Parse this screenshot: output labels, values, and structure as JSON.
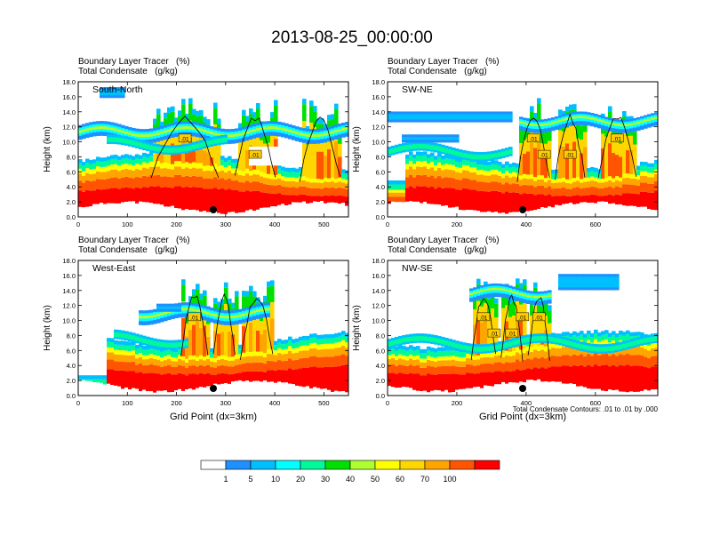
{
  "title": "2013-08-25_00:00:00",
  "panel_titles": {
    "line1": "Boundary Layer Tracer   (%)",
    "line2": "Total Condensate   (g/kg)"
  },
  "contour_note": "Total Condensate Contours: .01 to .01 by .000",
  "colorbar": {
    "labels": [
      "1",
      "5",
      "10",
      "20",
      "30",
      "40",
      "50",
      "60",
      "70",
      "100"
    ],
    "colors": [
      "#ffffff",
      "#1e90ff",
      "#00bfff",
      "#00ffff",
      "#00fa9a",
      "#00e000",
      "#adff2f",
      "#ffff00",
      "#ffd700",
      "#ffa500",
      "#ff5500",
      "#ff0000"
    ]
  },
  "chart_data": [
    {
      "type": "heatmap",
      "name": "South-North",
      "ylabel": "Height (km)",
      "xlabel": "",
      "xlim": [
        0,
        550
      ],
      "ylim": [
        0,
        18
      ],
      "xticks": [
        0,
        100,
        200,
        300,
        400,
        500
      ],
      "yticks": [
        "0.0",
        "2.0",
        "4.0",
        "6.0",
        "8.0",
        "10.0",
        "12.0",
        "14.0",
        "16.0",
        "18.0"
      ],
      "contour_labels": [
        ".01",
        ".01"
      ],
      "marker_x": 275
    },
    {
      "type": "heatmap",
      "name": "SW-NE",
      "ylabel": "Height (km)",
      "xlabel": "",
      "xlim": [
        0,
        780
      ],
      "ylim": [
        0,
        18
      ],
      "xticks": [
        0,
        200,
        400,
        600
      ],
      "yticks": [
        "0.0",
        "2.0",
        "4.0",
        "6.0",
        "8.0",
        "10.0",
        "12.0",
        "14.0",
        "16.0",
        "18.0"
      ],
      "contour_labels": [
        ".01",
        ".01",
        ".01",
        ".01"
      ],
      "marker_x": 390
    },
    {
      "type": "heatmap",
      "name": "West-East",
      "ylabel": "Height (km)",
      "xlabel": "Grid Point (dx=3km)",
      "xlim": [
        0,
        550
      ],
      "ylim": [
        0,
        18
      ],
      "xticks": [
        0,
        100,
        200,
        300,
        400,
        500
      ],
      "yticks": [
        "0.0",
        "2.0",
        "4.0",
        "6.0",
        "8.0",
        "10.0",
        "12.0",
        "14.0",
        "16.0",
        "18.0"
      ],
      "contour_labels": [
        ".01"
      ],
      "marker_x": 275
    },
    {
      "type": "heatmap",
      "name": "NW-SE",
      "ylabel": "Height (km)",
      "xlabel": "Grid Point (dx=3km)",
      "xlim": [
        0,
        780
      ],
      "ylim": [
        0,
        18
      ],
      "xticks": [
        0,
        200,
        400,
        600
      ],
      "yticks": [
        "0.0",
        "2.0",
        "4.0",
        "6.0",
        "8.0",
        "10.0",
        "12.0",
        "14.0",
        "16.0",
        "18.0"
      ],
      "contour_labels": [
        ".01",
        ".01",
        ".01",
        ".01",
        ".01"
      ],
      "marker_x": 390
    }
  ]
}
